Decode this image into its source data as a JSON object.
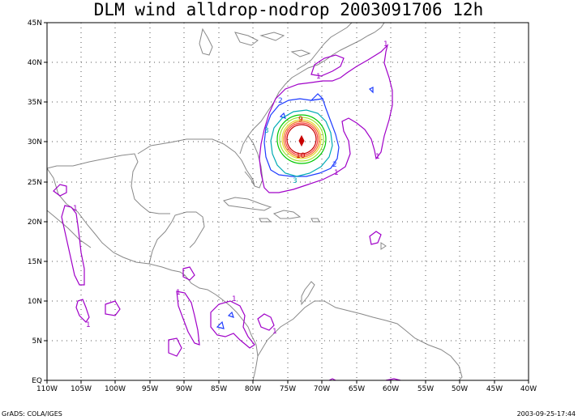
{
  "title": "DLM wind alldrop-nodrop 2003091706 12h",
  "footer": {
    "left": "GrADS: COLA/IGES",
    "right": "2003-09-25-17:44"
  },
  "axes": {
    "lon_labels": [
      "110W",
      "105W",
      "100W",
      "95W",
      "90W",
      "85W",
      "80W",
      "75W",
      "70W",
      "65W",
      "60W",
      "55W",
      "50W",
      "45W",
      "40W"
    ],
    "lat_labels": [
      "EQ",
      "5N",
      "10N",
      "15N",
      "20N",
      "25N",
      "30N",
      "35N",
      "40N",
      "45N"
    ]
  },
  "contour_labels": [
    {
      "text": "1",
      "color": "#a000c8"
    },
    {
      "text": "1",
      "color": "#a000c8"
    },
    {
      "text": "1",
      "color": "#a000c8"
    },
    {
      "text": "1",
      "color": "#a000c8"
    },
    {
      "text": "1",
      "color": "#a000c8"
    },
    {
      "text": "1",
      "color": "#a000c8"
    },
    {
      "text": "1",
      "color": "#a000c8"
    },
    {
      "text": "1",
      "color": "#a000c8"
    },
    {
      "text": "1",
      "color": "#a000c8"
    },
    {
      "text": "2",
      "color": "#1e3cff"
    },
    {
      "text": "2",
      "color": "#1e3cff"
    },
    {
      "text": "3",
      "color": "#00aab4"
    },
    {
      "text": "3",
      "color": "#00aab4"
    },
    {
      "text": "9",
      "color": "#c80000"
    },
    {
      "text": "10",
      "color": "#c80000"
    }
  ],
  "colors": {
    "c1": "#a000c8",
    "c2": "#1e3cff",
    "c3": "#00aab4",
    "c4": "#00c800",
    "c5": "#a0e632",
    "c6": "#e6dc32",
    "c7": "#f08228",
    "c8": "#fa3c3c",
    "c9": "#c80000"
  }
}
